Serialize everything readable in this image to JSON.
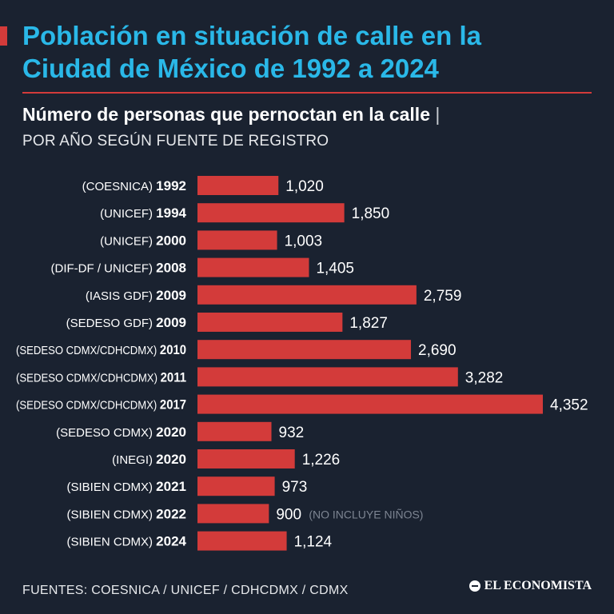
{
  "colors": {
    "background": "#1a2230",
    "accent": "#d33b3a",
    "title": "#2ab8e8",
    "text": "#ffffff",
    "note": "#7d8592"
  },
  "header": {
    "title_line1": "Población en situación de calle en la",
    "title_line2": "Ciudad de México de 1992 a 2024",
    "subtitle": "Número de personas que pernoctan en la calle",
    "subtitle_pipe": "|",
    "subtitle2": "POR AÑO SEGÚN FUENTE DE REGISTRO"
  },
  "chart_data": {
    "type": "bar",
    "orientation": "horizontal",
    "title": "Número de personas que pernoctan en la calle",
    "subtitle": "POR AÑO SEGÚN FUENTE DE REGISTRO",
    "xlabel": "",
    "ylabel": "",
    "xlim": [
      0,
      4352
    ],
    "grid": false,
    "legend": "none",
    "bar_color": "#d33b3a",
    "categories": [
      {
        "source": "(COESNICA)",
        "year": "1992"
      },
      {
        "source": "(UNICEF)",
        "year": "1994"
      },
      {
        "source": "(UNICEF)",
        "year": "2000"
      },
      {
        "source": "(DIF-DF / UNICEF)",
        "year": "2008"
      },
      {
        "source": "(IASIS GDF)",
        "year": "2009"
      },
      {
        "source": "(SEDESO GDF)",
        "year": "2009"
      },
      {
        "source": "(SEDESO CDMX/CDHCDMX)",
        "year": "2010"
      },
      {
        "source": "(SEDESO CDMX/CDHCDMX)",
        "year": "2011"
      },
      {
        "source": "(SEDESO CDMX/CDHCDMX)",
        "year": "2017"
      },
      {
        "source": "(SEDESO CDMX)",
        "year": "2020"
      },
      {
        "source": "(INEGI)",
        "year": "2020"
      },
      {
        "source": "(SIBIEN CDMX)",
        "year": "2021"
      },
      {
        "source": "(SIBIEN CDMX)",
        "year": "2022"
      },
      {
        "source": "(SIBIEN CDMX)",
        "year": "2024"
      }
    ],
    "values": [
      1020,
      1850,
      1003,
      1405,
      2759,
      1827,
      2690,
      3282,
      4352,
      932,
      1226,
      973,
      900,
      1124
    ],
    "value_labels": [
      "1,020",
      "1,850",
      "1,003",
      "1,405",
      "2,759",
      "1,827",
      "2,690",
      "3,282",
      "4,352",
      "932",
      "1,226",
      "973",
      "900",
      "1,124"
    ],
    "annotations": [
      {
        "index": 12,
        "text": "(NO INCLUYE NIÑOS)"
      }
    ]
  },
  "footer": {
    "sources": "FUENTES: COESNICA / UNICEF / CDHCDMX / CDMX",
    "brand": "EL ECONOMISTA"
  }
}
